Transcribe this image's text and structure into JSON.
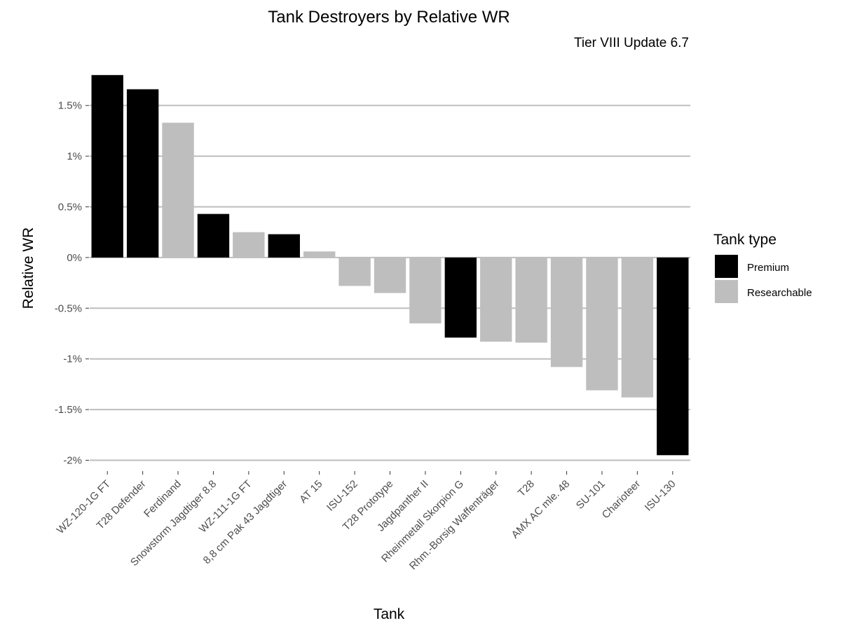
{
  "chart_data": {
    "type": "bar",
    "title": "Tank Destroyers by Relative WR",
    "subtitle": "Tier VIII Update 6.7",
    "xlabel": "Tank",
    "ylabel": "Relative WR",
    "ylim": [
      -2.1,
      1.85
    ],
    "yticks": [
      {
        "value": 1.5,
        "label": "1.5%"
      },
      {
        "value": 1.0,
        "label": "1%"
      },
      {
        "value": 0.5,
        "label": "0.5%"
      },
      {
        "value": 0.0,
        "label": "0%"
      },
      {
        "value": -0.5,
        "label": "-0.5%"
      },
      {
        "value": -1.0,
        "label": "-1%"
      },
      {
        "value": -1.5,
        "label": "-1.5%"
      },
      {
        "value": -2.0,
        "label": "-2%"
      }
    ],
    "categories": [
      "WZ-120-1G FT",
      "T28 Defender",
      "Ferdinand",
      "Snowstorm Jagdtiger 8.8",
      "WZ-111-1G FT",
      "8,8 cm Pak 43 Jagdtiger",
      "AT 15",
      "ISU-152",
      "T28 Prototype",
      "Jagdpanther II",
      "Rheinmetall Skorpion G",
      "Rhm.-Borsig Waffenträger",
      "T28",
      "AMX AC mle. 48",
      "SU-101",
      "Charioteer",
      "ISU-130"
    ],
    "values": [
      1.8,
      1.66,
      1.33,
      0.43,
      0.25,
      0.23,
      0.06,
      -0.28,
      -0.35,
      -0.65,
      -0.79,
      -0.83,
      -0.84,
      -1.08,
      -1.31,
      -1.38,
      -1.95
    ],
    "groups": [
      "Premium",
      "Premium",
      "Researchable",
      "Premium",
      "Researchable",
      "Premium",
      "Researchable",
      "Researchable",
      "Researchable",
      "Researchable",
      "Premium",
      "Researchable",
      "Researchable",
      "Researchable",
      "Researchable",
      "Researchable",
      "Premium"
    ],
    "legend": {
      "title": "Tank type",
      "position": "right",
      "entries": [
        {
          "name": "Premium",
          "color": "#000000"
        },
        {
          "name": "Researchable",
          "color": "#bebebe"
        }
      ]
    },
    "grid": true
  }
}
